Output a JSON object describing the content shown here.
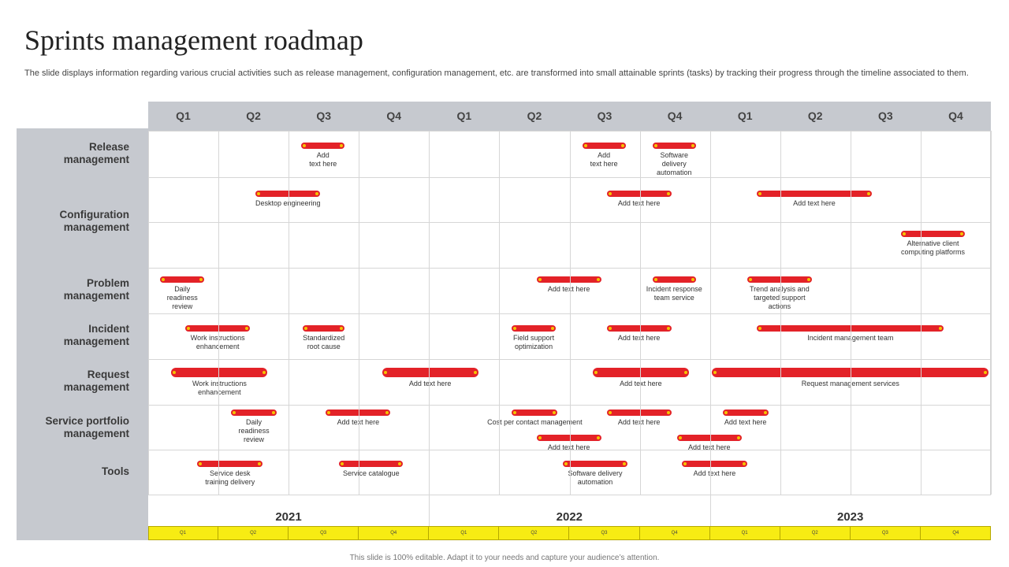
{
  "title": "Sprints management roadmap",
  "subtitle": "The slide displays information regarding various crucial activities such as release management, configuration management, etc. are transformed into small attainable sprints (tasks) by tracking their progress through the timeline associated to them.",
  "quarters": [
    "Q1",
    "Q2",
    "Q3",
    "Q4",
    "Q1",
    "Q2",
    "Q3",
    "Q4",
    "Q1",
    "Q2",
    "Q3",
    "Q4"
  ],
  "years": [
    "2021",
    "2022",
    "2023"
  ],
  "rows": [
    {
      "label": "Release\nmanagement"
    },
    {
      "label": "Configuration\nmanagement"
    },
    {
      "label": "Problem\nmanagement"
    },
    {
      "label": "Incident\nmanagement"
    },
    {
      "label": "Request\nmanagement"
    },
    {
      "label": "Service portfolio\nmanagement"
    },
    {
      "label": "Tools"
    }
  ],
  "tasks": [
    {
      "row": "Release management",
      "start": 2.18,
      "end": 2.8,
      "label": "Add\ntext here"
    },
    {
      "row": "Release management",
      "start": 6.18,
      "end": 6.8,
      "label": "Add\ntext here"
    },
    {
      "row": "Release management",
      "start": 7.18,
      "end": 7.8,
      "label": "Software\ndelivery\nautomation"
    },
    {
      "row": "Configuration management",
      "start": 1.53,
      "end": 2.45,
      "label": "Desktop engineering"
    },
    {
      "row": "Configuration management",
      "start": 6.53,
      "end": 7.45,
      "label": "Add text here"
    },
    {
      "row": "Configuration management",
      "start": 8.67,
      "end": 10.3,
      "label": "Add text here"
    },
    {
      "row": "Configuration management",
      "start": 10.72,
      "end": 11.63,
      "label": "Alternative client\ncomputing platforms"
    },
    {
      "row": "Problem management",
      "start": 0.17,
      "end": 0.8,
      "label": "Daily\nreadiness\nreview"
    },
    {
      "row": "Problem management",
      "start": 5.53,
      "end": 6.45,
      "label": "Add text here"
    },
    {
      "row": "Problem management",
      "start": 7.18,
      "end": 7.8,
      "label": "Incident response\nteam service"
    },
    {
      "row": "Problem management",
      "start": 8.53,
      "end": 9.45,
      "label": "Trend analysis and\ntargeted support\nactions"
    },
    {
      "row": "Incident management",
      "start": 0.53,
      "end": 1.45,
      "label": "Work instructions\nenhancement"
    },
    {
      "row": "Incident management",
      "start": 2.2,
      "end": 2.8,
      "label": "Standardized\nroot cause"
    },
    {
      "row": "Incident management",
      "start": 5.18,
      "end": 5.8,
      "label": "Field support\noptimization"
    },
    {
      "row": "Incident management",
      "start": 6.53,
      "end": 7.45,
      "label": "Add text here"
    },
    {
      "row": "Incident management",
      "start": 8.67,
      "end": 11.33,
      "label": "Incident management team"
    },
    {
      "row": "Request management",
      "start": 0.33,
      "end": 1.7,
      "label": "Work instructions\nenhancement"
    },
    {
      "row": "Request management",
      "start": 3.33,
      "end": 4.7,
      "label": "Add text here"
    },
    {
      "row": "Request management",
      "start": 6.33,
      "end": 7.7,
      "label": "Add text here"
    },
    {
      "row": "Request management",
      "start": 8.03,
      "end": 11.97,
      "label": "Request management services"
    },
    {
      "row": "Service portfolio management",
      "start": 1.18,
      "end": 1.83,
      "label": "Daily\nreadiness\nreview"
    },
    {
      "row": "Service portfolio management",
      "start": 2.53,
      "end": 3.45,
      "label": "Add text here"
    },
    {
      "row": "Service portfolio management",
      "start": 5.18,
      "end": 5.83,
      "label": "Cost per contact management"
    },
    {
      "row": "Service portfolio management",
      "start": 6.53,
      "end": 7.45,
      "label": "Add text here"
    },
    {
      "row": "Service portfolio management",
      "start": 8.18,
      "end": 8.83,
      "label": "Add text here"
    },
    {
      "row": "Service portfolio management",
      "start": 5.53,
      "end": 6.45,
      "label": "Add text here"
    },
    {
      "row": "Service portfolio management",
      "start": 7.53,
      "end": 8.45,
      "label": "Add text here"
    },
    {
      "row": "Tools",
      "start": 0.7,
      "end": 1.63,
      "label": "Service desk\ntraining delivery"
    },
    {
      "row": "Tools",
      "start": 2.72,
      "end": 3.63,
      "label": "Service catalogue"
    },
    {
      "row": "Tools",
      "start": 5.9,
      "end": 6.83,
      "label": "Software delivery\nautomation"
    },
    {
      "row": "Tools",
      "start": 7.6,
      "end": 8.53,
      "label": "Add text here"
    }
  ],
  "footer": "This slide is 100% editable.  Adapt it to your needs and capture your audience’s attention.",
  "colors": {
    "bar": "#e32228",
    "bar_dot": "#f5c400",
    "panel": "#c6c9cf",
    "strip": "#f7ec13"
  }
}
